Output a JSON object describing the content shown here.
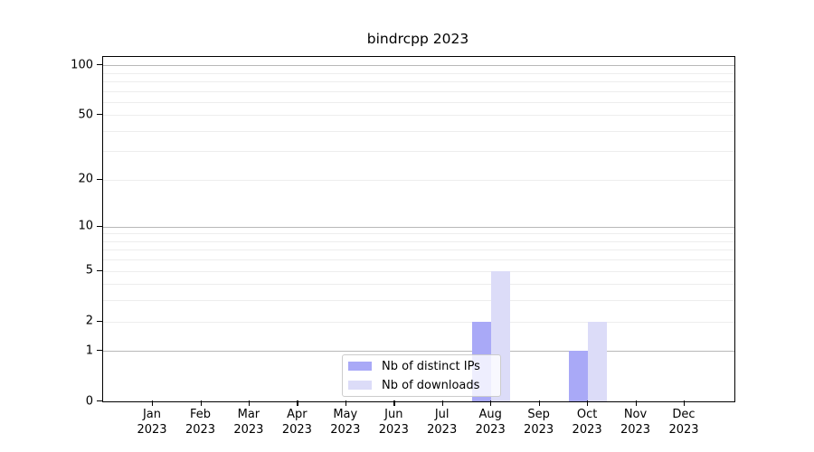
{
  "chart_data": {
    "type": "bar",
    "title": "bindrcpp 2023",
    "categories": [
      {
        "month": "Jan",
        "year": "2023"
      },
      {
        "month": "Feb",
        "year": "2023"
      },
      {
        "month": "Mar",
        "year": "2023"
      },
      {
        "month": "Apr",
        "year": "2023"
      },
      {
        "month": "May",
        "year": "2023"
      },
      {
        "month": "Jun",
        "year": "2023"
      },
      {
        "month": "Jul",
        "year": "2023"
      },
      {
        "month": "Aug",
        "year": "2023"
      },
      {
        "month": "Sep",
        "year": "2023"
      },
      {
        "month": "Oct",
        "year": "2023"
      },
      {
        "month": "Nov",
        "year": "2023"
      },
      {
        "month": "Dec",
        "year": "2023"
      }
    ],
    "series": [
      {
        "name": "Nb of distinct IPs",
        "color": "#a9a9f7",
        "values": [
          0,
          0,
          0,
          0,
          0,
          0,
          0,
          2,
          0,
          1,
          0,
          0
        ]
      },
      {
        "name": "Nb of downloads",
        "color": "#dcdcf8",
        "values": [
          0,
          0,
          0,
          0,
          0,
          0,
          0,
          5,
          0,
          2,
          0,
          0
        ]
      }
    ],
    "yscale": "log1p",
    "ylim": [
      0,
      112
    ],
    "ytick_values": [
      0,
      1,
      2,
      5,
      10,
      20,
      50,
      100
    ],
    "major_gridline_values": [
      1,
      10,
      100
    ],
    "minor_gridline_values": [
      2,
      3,
      4,
      5,
      6,
      7,
      8,
      9,
      20,
      30,
      40,
      50,
      60,
      70,
      80,
      90
    ],
    "grid": true,
    "legend_position": "inside-bottom-center",
    "frame_color": "#000000",
    "major_grid_color": "#b8b8b8",
    "minor_grid_color": "#ededed"
  }
}
